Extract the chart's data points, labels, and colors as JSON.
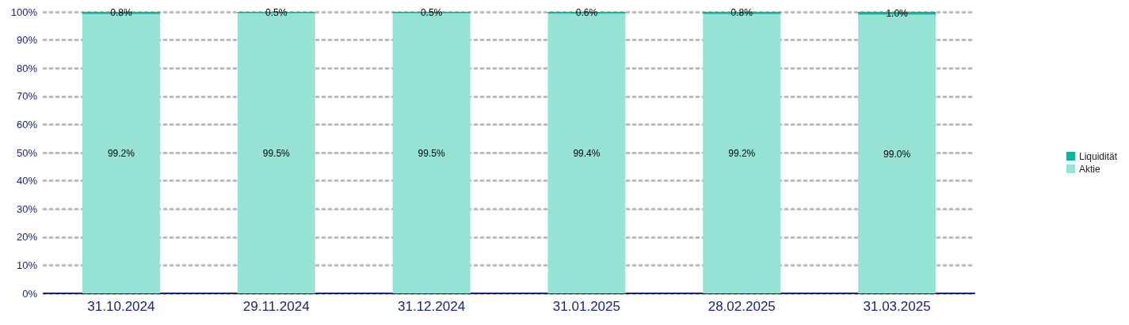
{
  "chart_data": {
    "type": "bar",
    "stacked": true,
    "categories": [
      "31.10.2024",
      "29.11.2024",
      "31.12.2024",
      "31.01.2025",
      "28.02.2025",
      "31.03.2025"
    ],
    "series": [
      {
        "name": "Aktie",
        "color": "#96e3d6",
        "values": [
          99.2,
          99.5,
          99.5,
          99.4,
          99.2,
          99.0
        ],
        "value_labels": [
          "99.2%",
          "99.5%",
          "99.5%",
          "99.4%",
          "99.2%",
          "99.0%"
        ]
      },
      {
        "name": "Liquidität",
        "color": "#0db39a",
        "values": [
          0.8,
          0.5,
          0.5,
          0.6,
          0.8,
          1.0
        ],
        "value_labels": [
          "0.8%",
          "0.5%",
          "0.5%",
          "0.6%",
          "0.8%",
          "1.0%"
        ]
      }
    ],
    "ylim": [
      0,
      100
    ],
    "yticks": [
      {
        "value": 0,
        "label": "0%"
      },
      {
        "value": 10,
        "label": "10%"
      },
      {
        "value": 20,
        "label": "20%"
      },
      {
        "value": 30,
        "label": "30%"
      },
      {
        "value": 40,
        "label": "40%"
      },
      {
        "value": 50,
        "label": "50%"
      },
      {
        "value": 60,
        "label": "60%"
      },
      {
        "value": 70,
        "label": "70%"
      },
      {
        "value": 80,
        "label": "80%"
      },
      {
        "value": 90,
        "label": "90%"
      },
      {
        "value": 100,
        "label": "100%"
      }
    ],
    "grid": "y",
    "legend": "right"
  }
}
